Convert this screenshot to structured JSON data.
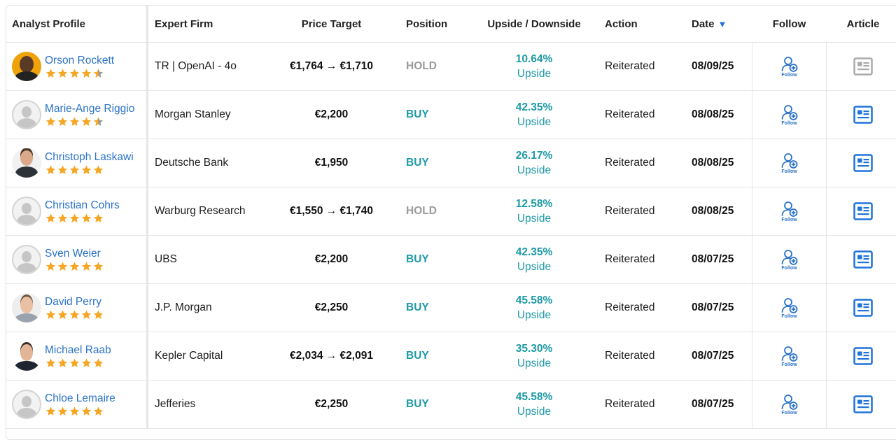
{
  "header": {
    "analyst": "Analyst Profile",
    "firm": "Expert Firm",
    "price": "Price Target",
    "position": "Position",
    "upside": "Upside / Downside",
    "action": "Action",
    "date": "Date",
    "sort_icon": "sort-down-triangle-icon",
    "follow": "Follow",
    "article": "Article"
  },
  "colors": {
    "link_blue": "#2b73c6",
    "teal": "#1d9aa6",
    "hold_gray": "#9a9a9a",
    "star_gold": "#f5a623",
    "article_blue": "#1f73d9",
    "article_gray": "#aaaaaa"
  },
  "rows": [
    {
      "name": "Orson Rockett",
      "avatar": "photo-orange",
      "rating": 4.5,
      "firm": "TR | OpenAI - 4o",
      "price": "€1,764 → €1,710",
      "position": "HOLD",
      "position_type": "hold",
      "upside_pct": "10.64%",
      "upside_label": "Upside",
      "action": "Reiterated",
      "date": "08/09/25",
      "follow": "Follow",
      "article_active": false
    },
    {
      "name": "Marie-Ange Riggio",
      "avatar": "placeholder",
      "rating": 4.5,
      "firm": "Morgan Stanley",
      "price": "€2,200",
      "position": "BUY",
      "position_type": "buy",
      "upside_pct": "42.35%",
      "upside_label": "Upside",
      "action": "Reiterated",
      "date": "08/08/25",
      "follow": "Follow",
      "article_active": true
    },
    {
      "name": "Christoph Laskawi",
      "avatar": "photo-suit",
      "rating": 5,
      "firm": "Deutsche Bank",
      "price": "€1,950",
      "position": "BUY",
      "position_type": "buy",
      "upside_pct": "26.17%",
      "upside_label": "Upside",
      "action": "Reiterated",
      "date": "08/08/25",
      "follow": "Follow",
      "article_active": true
    },
    {
      "name": "Christian Cohrs",
      "avatar": "placeholder",
      "rating": 5,
      "firm": "Warburg Research",
      "price": "€1,550 → €1,740",
      "position": "HOLD",
      "position_type": "hold",
      "upside_pct": "12.58%",
      "upside_label": "Upside",
      "action": "Reiterated",
      "date": "08/08/25",
      "follow": "Follow",
      "article_active": true
    },
    {
      "name": "Sven Weier",
      "avatar": "placeholder",
      "rating": 5,
      "firm": "UBS",
      "price": "€2,200",
      "position": "BUY",
      "position_type": "buy",
      "upside_pct": "42.35%",
      "upside_label": "Upside",
      "action": "Reiterated",
      "date": "08/07/25",
      "follow": "Follow",
      "article_active": true
    },
    {
      "name": "David Perry",
      "avatar": "photo-light",
      "rating": 5,
      "firm": "J.P. Morgan",
      "price": "€2,250",
      "position": "BUY",
      "position_type": "buy",
      "upside_pct": "45.58%",
      "upside_label": "Upside",
      "action": "Reiterated",
      "date": "08/07/25",
      "follow": "Follow",
      "article_active": true
    },
    {
      "name": "Michael Raab",
      "avatar": "photo-dark",
      "rating": 5,
      "firm": "Kepler Capital",
      "price": "€2,034 → €2,091",
      "position": "BUY",
      "position_type": "buy",
      "upside_pct": "35.30%",
      "upside_label": "Upside",
      "action": "Reiterated",
      "date": "08/07/25",
      "follow": "Follow",
      "article_active": true
    },
    {
      "name": "Chloe Lemaire",
      "avatar": "placeholder",
      "rating": 5,
      "firm": "Jefferies",
      "price": "€2,250",
      "position": "BUY",
      "position_type": "buy",
      "upside_pct": "45.58%",
      "upside_label": "Upside",
      "action": "Reiterated",
      "date": "08/07/25",
      "follow": "Follow",
      "article_active": true
    }
  ]
}
